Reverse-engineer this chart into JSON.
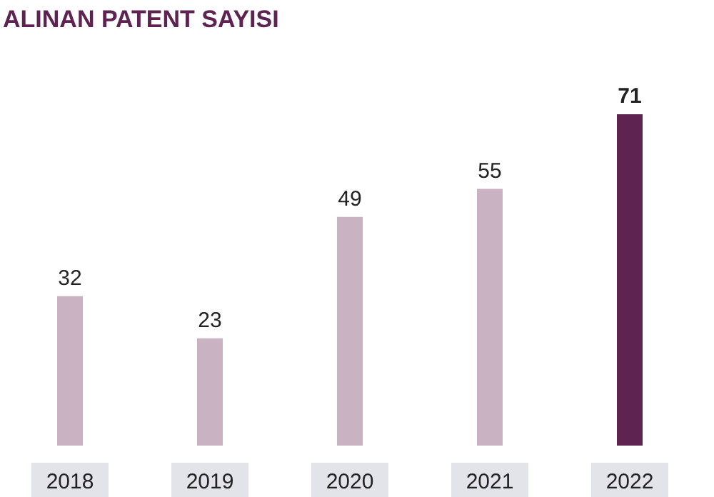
{
  "chart_data": {
    "type": "bar",
    "title": "ALINAN PATENT SAYISI",
    "categories": [
      "2018",
      "2019",
      "2020",
      "2021",
      "2022"
    ],
    "values": [
      32,
      23,
      49,
      55,
      71
    ],
    "colors": [
      "#c9b3c2",
      "#c9b3c2",
      "#c9b3c2",
      "#c9b3c2",
      "#5e2350"
    ],
    "data_labels": true
  }
}
